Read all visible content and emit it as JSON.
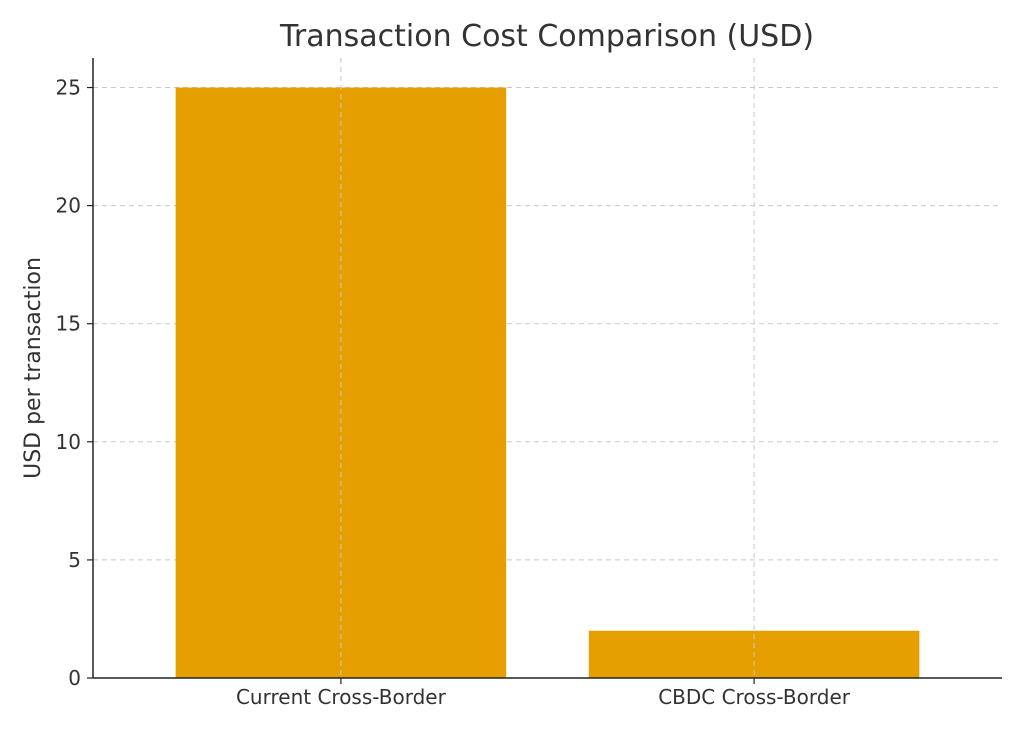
{
  "chart_data": {
    "type": "bar",
    "title": "Transaction Cost Comparison (USD)",
    "xlabel": "",
    "ylabel": "USD per transaction",
    "categories": [
      "Current Cross-Border",
      "CBDC Cross-Border"
    ],
    "values": [
      25,
      2
    ],
    "ylim": [
      0,
      26.25
    ],
    "yticks": [
      0,
      5,
      10,
      15,
      20,
      25
    ],
    "grid": true,
    "bar_color": "#E5A000"
  }
}
